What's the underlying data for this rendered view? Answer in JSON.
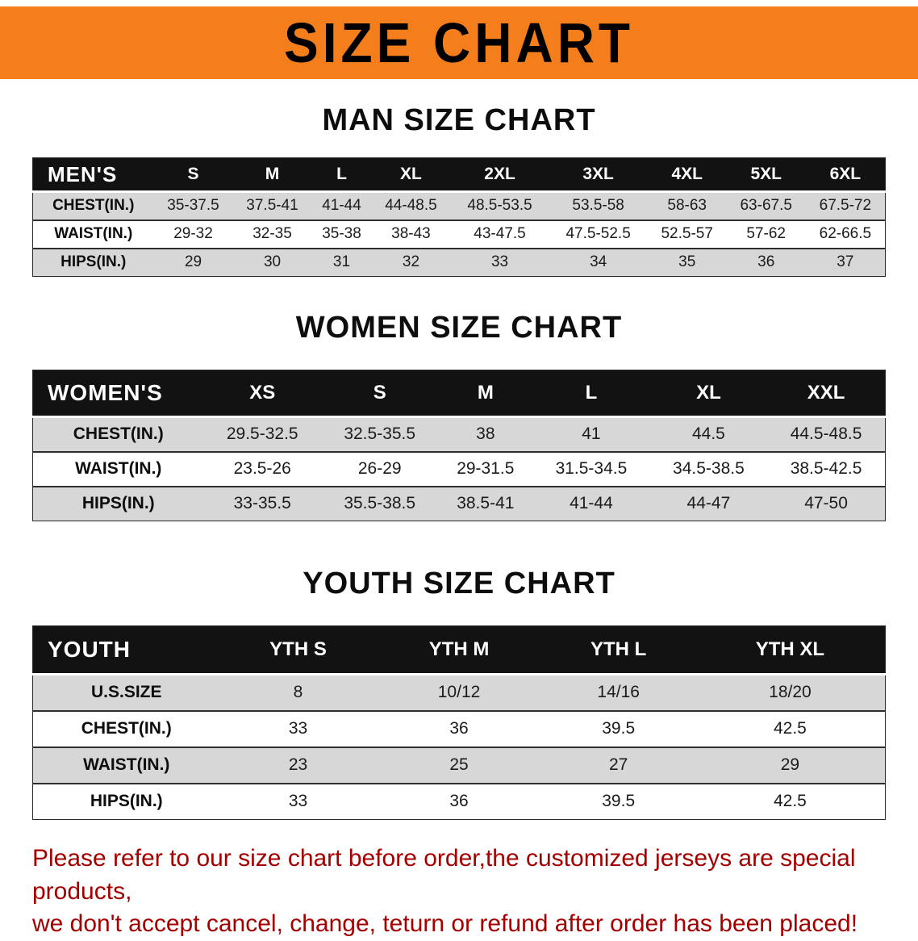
{
  "banner": {
    "title": "SIZE CHART"
  },
  "sections": {
    "men": {
      "heading": "MAN SIZE CHART",
      "table": {
        "header": [
          "MEN'S",
          "S",
          "M",
          "L",
          "XL",
          "2XL",
          "3XL",
          "4XL",
          "5XL",
          "6XL"
        ],
        "rows": [
          {
            "label": "CHEST(IN.)",
            "values": [
              "35-37.5",
              "37.5-41",
              "41-44",
              "44-48.5",
              "48.5-53.5",
              "53.5-58",
              "58-63",
              "63-67.5",
              "67.5-72"
            ]
          },
          {
            "label": "WAIST(IN.)",
            "values": [
              "29-32",
              "32-35",
              "35-38",
              "38-43",
              "43-47.5",
              "47.5-52.5",
              "52.5-57",
              "57-62",
              "62-66.5"
            ]
          },
          {
            "label": "HIPS(IN.)",
            "values": [
              "29",
              "30",
              "31",
              "32",
              "33",
              "34",
              "35",
              "36",
              "37"
            ]
          }
        ]
      }
    },
    "women": {
      "heading": "WOMEN SIZE CHART",
      "table": {
        "header": [
          "WOMEN'S",
          "XS",
          "S",
          "M",
          "L",
          "XL",
          "XXL"
        ],
        "rows": [
          {
            "label": "CHEST(IN.)",
            "values": [
              "29.5-32.5",
              "32.5-35.5",
              "38",
              "41",
              "44.5",
              "44.5-48.5"
            ]
          },
          {
            "label": "WAIST(IN.)",
            "values": [
              "23.5-26",
              "26-29",
              "29-31.5",
              "31.5-34.5",
              "34.5-38.5",
              "38.5-42.5"
            ]
          },
          {
            "label": "HIPS(IN.)",
            "values": [
              "33-35.5",
              "35.5-38.5",
              "38.5-41",
              "41-44",
              "44-47",
              "47-50"
            ]
          }
        ]
      }
    },
    "youth": {
      "heading": "YOUTH SIZE CHART",
      "table": {
        "header": [
          "YOUTH",
          "YTH S",
          "YTH M",
          "YTH L",
          "YTH XL"
        ],
        "rows": [
          {
            "label": "U.S.SIZE",
            "values": [
              "8",
              "10/12",
              "14/16",
              "18/20"
            ]
          },
          {
            "label": "CHEST(IN.)",
            "values": [
              "33",
              "36",
              "39.5",
              "42.5"
            ]
          },
          {
            "label": "WAIST(IN.)",
            "values": [
              "23",
              "25",
              "27",
              "29"
            ]
          },
          {
            "label": "HIPS(IN.)",
            "values": [
              "33",
              "36",
              "39.5",
              "42.5"
            ]
          }
        ]
      }
    }
  },
  "footer": {
    "line1": "Please refer to our size chart before order,the customized jerseys are special products,",
    "line2": "we don't accept cancel, change, teturn or refund after order has been placed!"
  },
  "colors": {
    "banner_orange": "#F57E1C",
    "header_black": "#121212",
    "row_gray": "#d7d7d7",
    "footer_red": "#A40000"
  }
}
